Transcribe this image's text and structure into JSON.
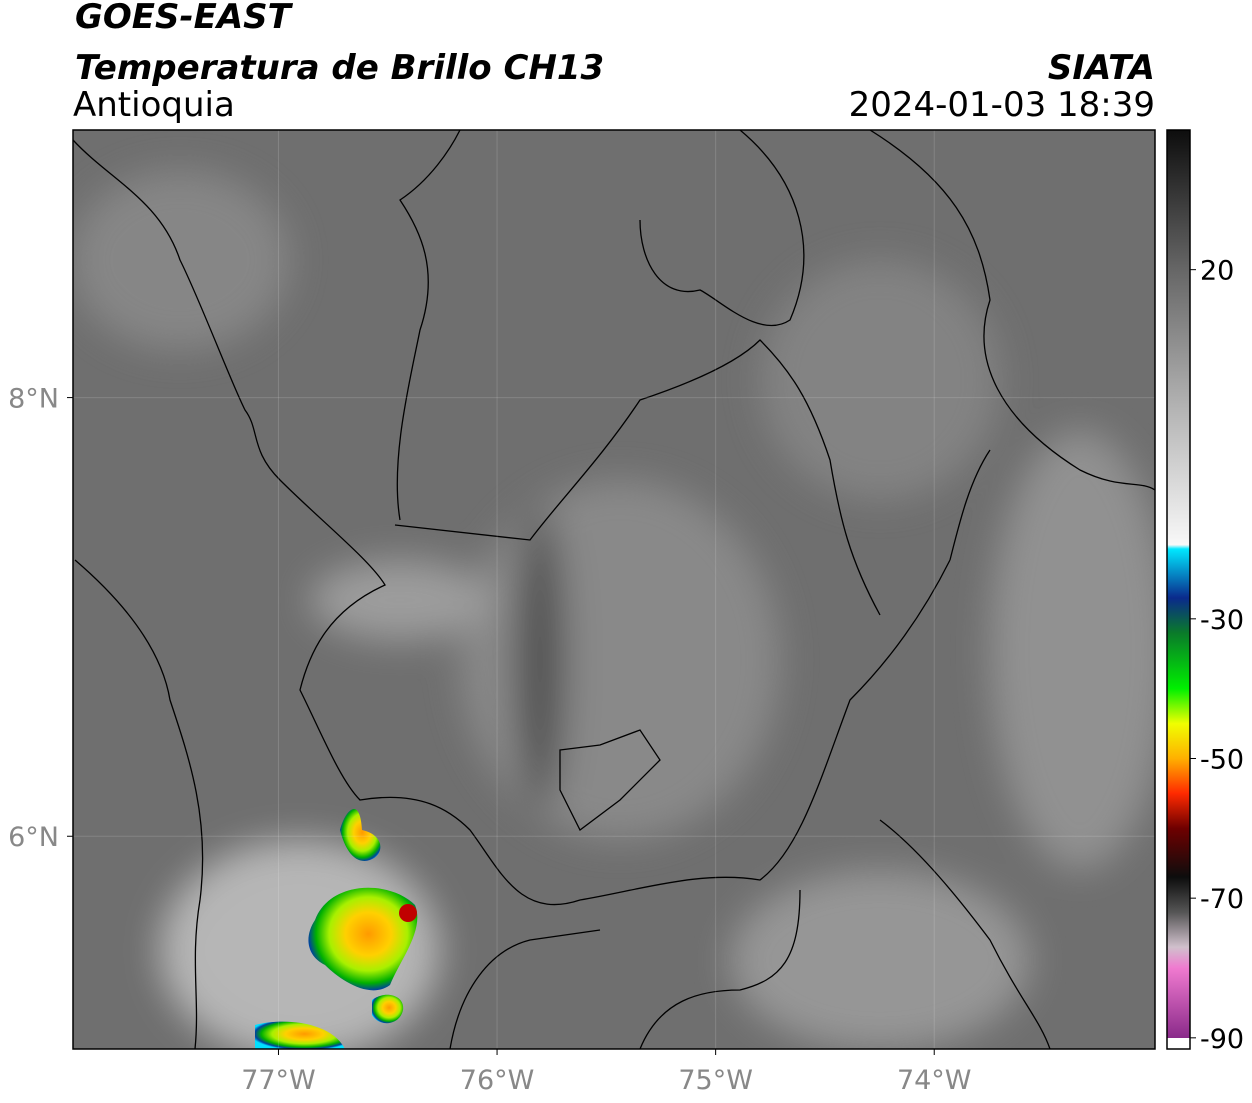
{
  "header": {
    "title": "GOES-EAST",
    "subtitle": "Temperatura de Brillo CH13",
    "region": "Antioquia",
    "source": "SIATA",
    "datetime": "2024-01-03 18:39"
  },
  "map": {
    "xlim": [
      -77.94,
      -72.99
    ],
    "ylim": [
      5.03,
      9.22
    ],
    "xticks": [
      {
        "value": -77,
        "label": "77°W"
      },
      {
        "value": -76,
        "label": "76°W"
      },
      {
        "value": -75,
        "label": "75°W"
      },
      {
        "value": -74,
        "label": "74°W"
      }
    ],
    "yticks": [
      {
        "value": 8,
        "label": "8°N"
      },
      {
        "value": 6,
        "label": "6°N"
      }
    ],
    "grid": true
  },
  "colorbar": {
    "lim": [
      -91.6,
      40
    ],
    "ticks": [
      20,
      -30,
      -50,
      -70,
      -90
    ],
    "stops": [
      {
        "value": 40,
        "color": "#0d0d0d"
      },
      {
        "value": 30,
        "color": "#3a3a3a"
      },
      {
        "value": 20,
        "color": "#666666"
      },
      {
        "value": 0,
        "color": "#b4b4b4"
      },
      {
        "value": -19.4,
        "color": "#f8f8f8"
      },
      {
        "value": -20,
        "color": "#00e8ff"
      },
      {
        "value": -27,
        "color": "#0a2a8c"
      },
      {
        "value": -32,
        "color": "#0a7a2a"
      },
      {
        "value": -40,
        "color": "#00f000"
      },
      {
        "value": -45,
        "color": "#f0ff00"
      },
      {
        "value": -50,
        "color": "#ffb000"
      },
      {
        "value": -55,
        "color": "#ff2a00"
      },
      {
        "value": -60,
        "color": "#6e0000"
      },
      {
        "value": -67,
        "color": "#0d0d0d"
      },
      {
        "value": -72,
        "color": "#555555"
      },
      {
        "value": -77,
        "color": "#d0c0cc"
      },
      {
        "value": -80,
        "color": "#f07ad0"
      },
      {
        "value": -90,
        "color": "#8a2a8a"
      },
      {
        "value": -90.01,
        "color": "#ffffff"
      }
    ]
  }
}
